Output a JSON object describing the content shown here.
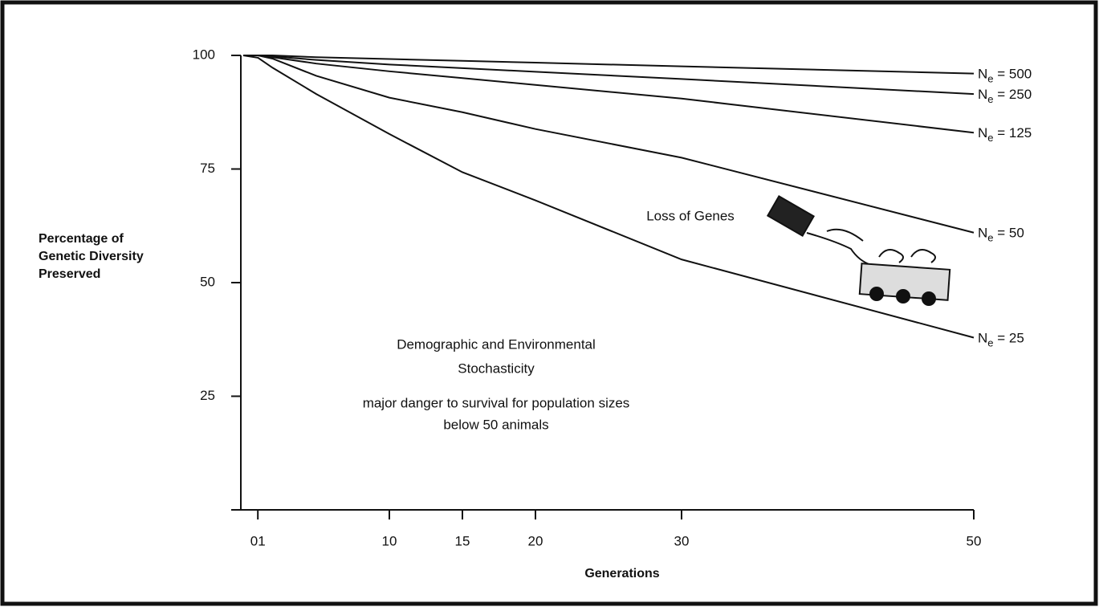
{
  "chart_data": {
    "type": "line",
    "y_label_lines": [
      "Percentage of",
      "Genetic Diversity",
      "Preserved"
    ],
    "x_label": "Generations",
    "annotations": [
      "Loss of Genes",
      "Demographic and Environmental",
      "Stochasticity",
      "major danger to survival for population sizes",
      "below 50 animals"
    ],
    "x": [
      0,
      1,
      2,
      5,
      10,
      15,
      20,
      30,
      50
    ],
    "series": [
      {
        "name": "Ne = 500",
        "color": "#111111",
        "values": [
          100,
          100,
          100,
          99.6,
          99.2,
          98.8,
          98.4,
          97.6,
          96
        ]
      },
      {
        "name": "Ne = 250",
        "color": "#111111",
        "values": [
          100,
          100,
          99.8,
          99,
          98,
          97.2,
          96.4,
          94.8,
          91.5
        ]
      },
      {
        "name": "Ne = 125",
        "color": "#111111",
        "values": [
          100,
          100,
          99.6,
          98.2,
          96.5,
          95,
          93.5,
          90.5,
          83
        ]
      },
      {
        "name": "Ne = 50",
        "color": "#111111",
        "values": [
          100,
          100,
          99.3,
          95.5,
          90.7,
          87.5,
          83.8,
          77.5,
          61
        ]
      },
      {
        "name": "Ne = 25",
        "color": "#111111",
        "values": [
          100,
          99.5,
          97.3,
          91.5,
          82.7,
          74.3,
          68.1,
          55.1,
          37.9
        ]
      }
    ],
    "xlim": [
      0,
      50
    ],
    "xticks": [
      {
        "value": 1,
        "label": "01"
      },
      10,
      15,
      20,
      30,
      50
    ],
    "ylim": [
      0,
      100
    ],
    "yticks": [
      25,
      50,
      75,
      100
    ]
  }
}
